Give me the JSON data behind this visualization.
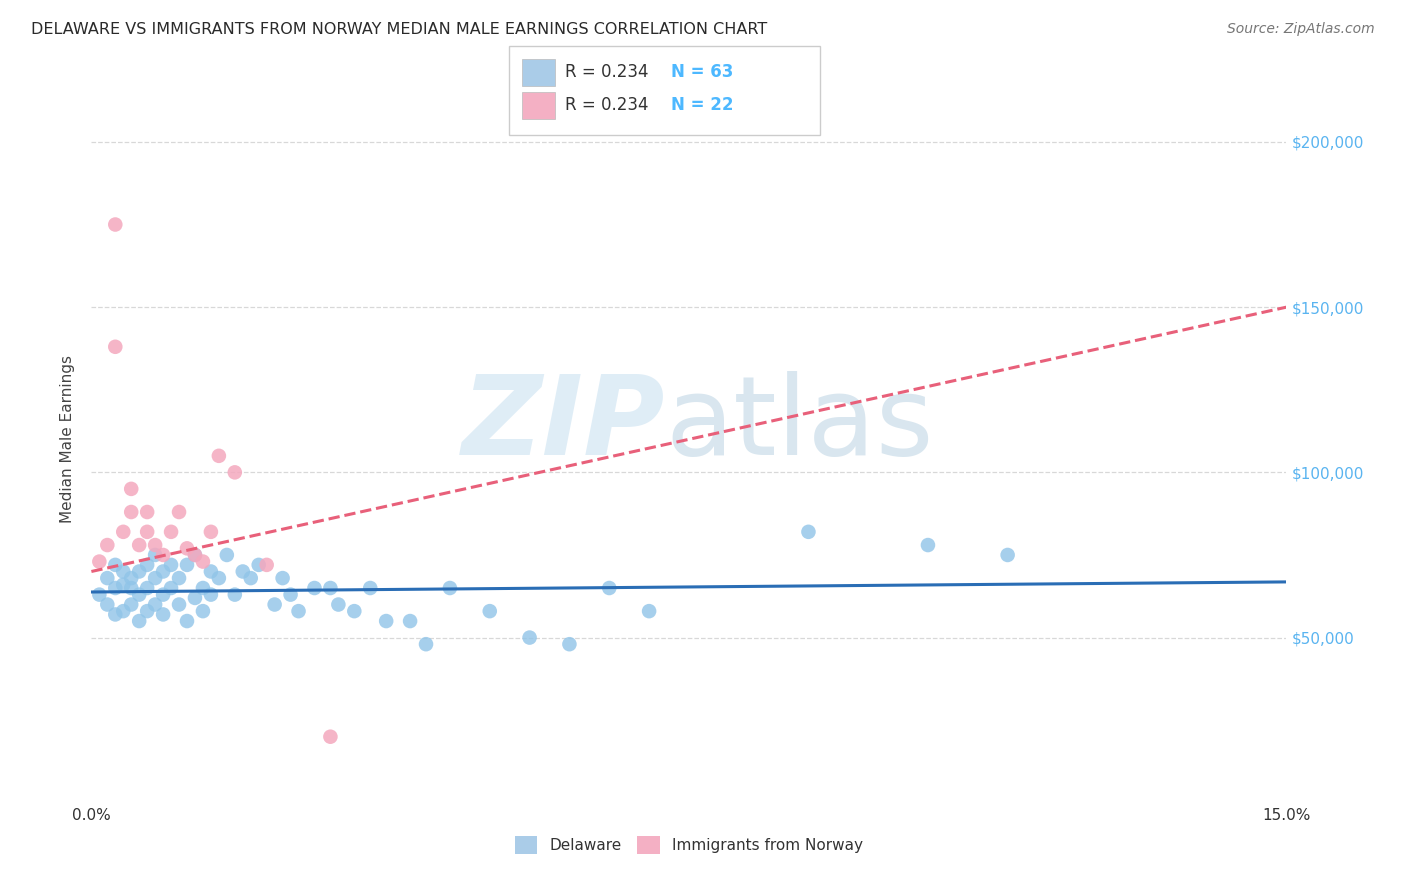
{
  "title": "DELAWARE VS IMMIGRANTS FROM NORWAY MEDIAN MALE EARNINGS CORRELATION CHART",
  "source": "Source: ZipAtlas.com",
  "ylabel": "Median Male Earnings",
  "xlim": [
    0.0,
    0.15
  ],
  "ylim": [
    0,
    220000
  ],
  "background_color": "#ffffff",
  "grid_color": "#d8d8d8",
  "blue_scatter_color": "#90c4e8",
  "pink_scatter_color": "#f4a8be",
  "blue_line_color": "#2a6db5",
  "pink_line_color": "#e8607a",
  "title_color": "#2a2a2a",
  "source_color": "#777777",
  "axis_label_color": "#444444",
  "right_tick_color": "#5ab4f0",
  "legend_text_color": "#333333",
  "legend_num_color": "#4da6ff",
  "delaware_x": [
    0.001,
    0.002,
    0.002,
    0.003,
    0.003,
    0.003,
    0.004,
    0.004,
    0.004,
    0.005,
    0.005,
    0.005,
    0.006,
    0.006,
    0.006,
    0.007,
    0.007,
    0.007,
    0.008,
    0.008,
    0.008,
    0.009,
    0.009,
    0.009,
    0.01,
    0.01,
    0.011,
    0.011,
    0.012,
    0.012,
    0.013,
    0.013,
    0.014,
    0.014,
    0.015,
    0.015,
    0.016,
    0.017,
    0.018,
    0.019,
    0.02,
    0.021,
    0.023,
    0.024,
    0.025,
    0.026,
    0.028,
    0.03,
    0.031,
    0.033,
    0.035,
    0.037,
    0.04,
    0.042,
    0.045,
    0.05,
    0.055,
    0.06,
    0.065,
    0.07,
    0.09,
    0.105,
    0.115
  ],
  "delaware_y": [
    63000,
    60000,
    68000,
    57000,
    65000,
    72000,
    58000,
    66000,
    70000,
    60000,
    65000,
    68000,
    55000,
    63000,
    70000,
    58000,
    65000,
    72000,
    60000,
    68000,
    75000,
    57000,
    63000,
    70000,
    65000,
    72000,
    60000,
    68000,
    55000,
    72000,
    62000,
    75000,
    58000,
    65000,
    63000,
    70000,
    68000,
    75000,
    63000,
    70000,
    68000,
    72000,
    60000,
    68000,
    63000,
    58000,
    65000,
    65000,
    60000,
    58000,
    65000,
    55000,
    55000,
    48000,
    65000,
    58000,
    50000,
    48000,
    65000,
    58000,
    82000,
    78000,
    75000
  ],
  "norway_x": [
    0.001,
    0.002,
    0.003,
    0.003,
    0.004,
    0.005,
    0.005,
    0.006,
    0.007,
    0.007,
    0.008,
    0.009,
    0.01,
    0.011,
    0.012,
    0.013,
    0.014,
    0.015,
    0.016,
    0.018,
    0.022,
    0.03
  ],
  "norway_y": [
    73000,
    78000,
    175000,
    138000,
    82000,
    88000,
    95000,
    78000,
    82000,
    88000,
    78000,
    75000,
    82000,
    88000,
    77000,
    75000,
    73000,
    82000,
    105000,
    100000,
    72000,
    20000
  ],
  "norway_line_x0": 0.0,
  "norway_line_x1": 0.15,
  "delaware_line_x0": 0.0,
  "delaware_line_x1": 0.15
}
